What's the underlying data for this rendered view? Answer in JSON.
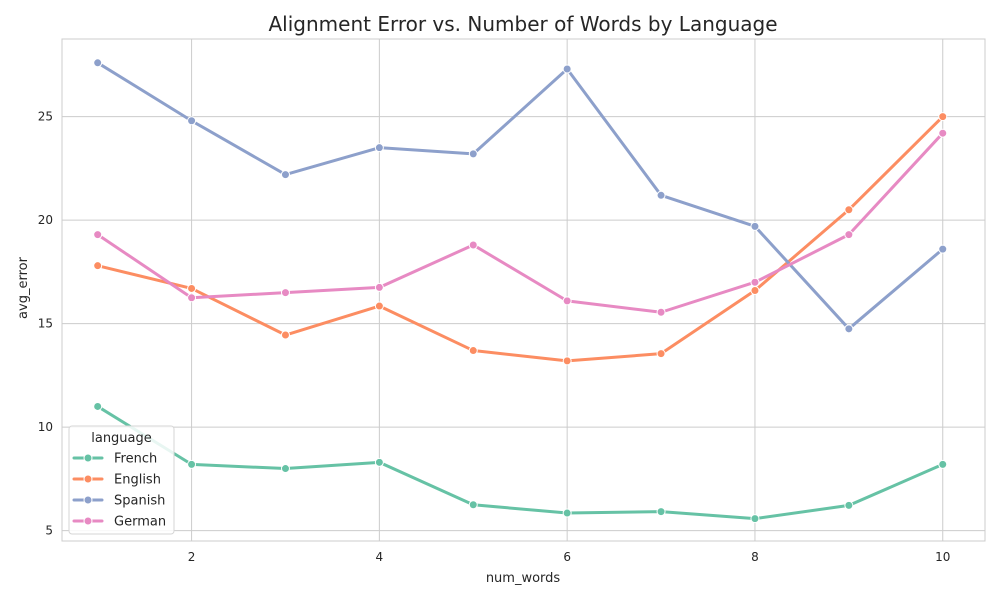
{
  "chart_data": {
    "type": "line",
    "title": "Alignment Error vs. Number of Words by Language",
    "xlabel": "num_words",
    "ylabel": "avg_error",
    "x": [
      1,
      2,
      3,
      4,
      5,
      6,
      7,
      8,
      9,
      10
    ],
    "xlim": [
      0.62,
      10.45
    ],
    "ylim": [
      4.5,
      28.75
    ],
    "xticks": [
      2,
      4,
      6,
      8,
      10
    ],
    "yticks": [
      5,
      10,
      15,
      20,
      25
    ],
    "grid": true,
    "legend": {
      "title": "language",
      "placement": "lower-left"
    },
    "series": [
      {
        "name": "French",
        "color": "#66c2a5",
        "values": [
          11.0,
          8.2,
          8.0,
          8.3,
          6.25,
          5.85,
          5.92,
          5.58,
          6.22,
          8.2
        ]
      },
      {
        "name": "English",
        "color": "#fc8d62",
        "values": [
          17.8,
          16.7,
          14.45,
          15.85,
          13.7,
          13.2,
          13.55,
          16.6,
          20.5,
          25.0
        ]
      },
      {
        "name": "Spanish",
        "color": "#8da0cb",
        "values": [
          27.6,
          24.8,
          22.2,
          23.5,
          23.2,
          27.3,
          21.2,
          19.7,
          14.75,
          18.6
        ]
      },
      {
        "name": "German",
        "color": "#e78ac3",
        "values": [
          19.3,
          16.25,
          16.5,
          16.75,
          18.8,
          16.1,
          15.55,
          17.0,
          19.3,
          24.2
        ]
      }
    ]
  }
}
